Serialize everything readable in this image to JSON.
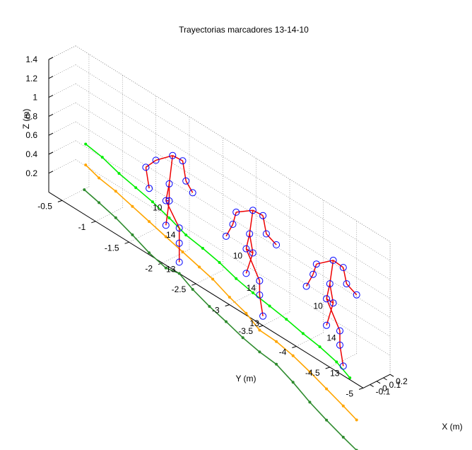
{
  "chart_data": {
    "type": "line",
    "projection": "3d",
    "title": "Trayectorias marcadores 13-14-10",
    "xlabel": "X (m)",
    "ylabel": "Y (m)",
    "zlabel": "Z (m)",
    "grid": true,
    "xlim": [
      -0.2,
      0.2
    ],
    "ylim": [
      -5,
      -0.3
    ],
    "zlim": [
      0,
      1.4
    ],
    "x_ticks": [
      "-0.1",
      "0",
      "0.1",
      "0.2"
    ],
    "y_ticks": [
      "-0.5",
      "-1",
      "-1.5",
      "-2",
      "-2.5",
      "-3",
      "-3.5",
      "-4",
      "-4.5",
      "-5"
    ],
    "z_ticks": [
      "0.2",
      "0.4",
      "0.6",
      "0.8",
      "1",
      "1.2",
      "1.4"
    ],
    "colors": {
      "marker_10": "#00ee00",
      "marker_14": "#ffa500",
      "marker_13": "#2e8b2e",
      "skeleton": "#ee0000",
      "joint": "#0000ff",
      "grid": "#888888",
      "axis": "#000000"
    },
    "series": [
      {
        "name": "10",
        "color": "#00ee00",
        "points": [
          [
            0.05,
            -0.6,
            0.55
          ],
          [
            0.05,
            -0.85,
            0.52
          ],
          [
            0.05,
            -1.1,
            0.46
          ],
          [
            0.05,
            -1.35,
            0.42
          ],
          [
            0.05,
            -1.6,
            0.38
          ],
          [
            0.05,
            -1.85,
            0.32
          ],
          [
            0.05,
            -2.1,
            0.25
          ],
          [
            0.05,
            -2.35,
            0.22
          ],
          [
            0.05,
            -2.6,
            0.18
          ],
          [
            0.05,
            -2.85,
            0.12
          ],
          [
            0.05,
            -3.1,
            0.08
          ],
          [
            0.05,
            -3.35,
            0.05
          ],
          [
            0.05,
            -3.6,
            0.02
          ],
          [
            0.05,
            -3.85,
            -0.02
          ],
          [
            0.05,
            -4.1,
            -0.05
          ],
          [
            0.05,
            -4.35,
            -0.1
          ],
          [
            0.05,
            -4.55,
            -0.18
          ]
        ]
      },
      {
        "name": "14",
        "color": "#ffa500",
        "points": [
          [
            0.05,
            -0.6,
            0.33
          ],
          [
            0.05,
            -0.8,
            0.28
          ],
          [
            0.05,
            -1.05,
            0.25
          ],
          [
            0.05,
            -1.3,
            0.2
          ],
          [
            0.05,
            -1.55,
            0.15
          ],
          [
            0.05,
            -1.8,
            0.1
          ],
          [
            0.05,
            -2.05,
            0.05
          ],
          [
            0.05,
            -2.3,
            0
          ],
          [
            0.05,
            -2.5,
            -0.04
          ],
          [
            0.05,
            -2.75,
            -0.12
          ],
          [
            0.05,
            -3.0,
            -0.18
          ],
          [
            0.05,
            -3.2,
            -0.27
          ],
          [
            0.05,
            -3.45,
            -0.28
          ],
          [
            0.05,
            -3.7,
            -0.32
          ],
          [
            0.05,
            -3.95,
            -0.38
          ],
          [
            0.05,
            -4.2,
            -0.45
          ],
          [
            0.05,
            -4.45,
            -0.52
          ],
          [
            0.05,
            -4.65,
            -0.58
          ]
        ]
      },
      {
        "name": "13",
        "color": "#2e8b2e",
        "points": [
          [
            0.05,
            -0.58,
            0.06
          ],
          [
            0.05,
            -0.8,
            0.02
          ],
          [
            0.05,
            -1.05,
            -0.03
          ],
          [
            0.05,
            -1.3,
            -0.1
          ],
          [
            0.05,
            -1.55,
            -0.18
          ],
          [
            0.05,
            -1.8,
            -0.23
          ],
          [
            0.05,
            -2.0,
            -0.2
          ],
          [
            0.05,
            -2.2,
            -0.28
          ],
          [
            0.05,
            -2.45,
            -0.35
          ],
          [
            0.05,
            -2.7,
            -0.4
          ],
          [
            0.05,
            -2.95,
            -0.46
          ],
          [
            0.05,
            -3.2,
            -0.5
          ],
          [
            0.05,
            -3.45,
            -0.52
          ],
          [
            0.05,
            -3.7,
            -0.6
          ],
          [
            0.05,
            -3.95,
            -0.7
          ],
          [
            0.05,
            -4.2,
            -0.78
          ],
          [
            0.05,
            -4.45,
            -0.85
          ],
          [
            0.05,
            -4.65,
            -0.9
          ]
        ]
      }
    ],
    "skeletons": [
      {
        "y": -1.8,
        "labels": [
          "10",
          "14",
          "13"
        ],
        "joints": [
          [
            0.05,
            -1.9,
            1.0
          ],
          [
            -0.05,
            -1.75,
            0.92
          ],
          [
            0.1,
            -2.0,
            0.97
          ],
          [
            -0.05,
            -1.6,
            0.78
          ],
          [
            0.1,
            -2.05,
            0.78
          ],
          [
            -0.1,
            -1.7,
            0.62
          ],
          [
            0.2,
            -2.05,
            0.62
          ],
          [
            0.05,
            -1.85,
            0.68
          ],
          [
            0.05,
            -1.8,
            0.48
          ],
          [
            0.05,
            -1.85,
            0.5
          ],
          [
            -0.05,
            -1.9,
            0.3
          ],
          [
            0.05,
            -2.0,
            0.28
          ],
          [
            0.05,
            -2.0,
            0.12
          ],
          [
            0.05,
            -2.0,
            -0.08
          ]
        ]
      },
      {
        "y": -3.0,
        "labels": [
          "10",
          "14",
          "13"
        ],
        "joints": [
          [
            0.05,
            -3.1,
            0.95
          ],
          [
            -0.05,
            -2.95,
            0.9
          ],
          [
            0.1,
            -3.2,
            0.92
          ],
          [
            -0.05,
            -2.9,
            0.75
          ],
          [
            0.1,
            -3.25,
            0.75
          ],
          [
            -0.1,
            -2.85,
            0.62
          ],
          [
            0.2,
            -3.3,
            0.62
          ],
          [
            0.05,
            -3.05,
            0.68
          ],
          [
            0.05,
            -3.0,
            0.5
          ],
          [
            0.05,
            -3.1,
            0.5
          ],
          [
            -0.05,
            -3.1,
            0.32
          ],
          [
            0.05,
            -3.2,
            0.25
          ],
          [
            0.05,
            -3.2,
            0.1
          ],
          [
            0.05,
            -3.25,
            -0.1
          ]
        ]
      },
      {
        "y": -4.2,
        "labels": [
          "10",
          "14",
          "13"
        ],
        "joints": [
          [
            0.05,
            -4.3,
            0.95
          ],
          [
            -0.05,
            -4.15,
            0.88
          ],
          [
            0.1,
            -4.4,
            0.9
          ],
          [
            -0.05,
            -4.1,
            0.75
          ],
          [
            0.1,
            -4.45,
            0.75
          ],
          [
            -0.1,
            -4.05,
            0.62
          ],
          [
            0.2,
            -4.5,
            0.62
          ],
          [
            0.05,
            -4.25,
            0.68
          ],
          [
            0.05,
            -4.2,
            0.5
          ],
          [
            0.05,
            -4.3,
            0.5
          ],
          [
            -0.05,
            -4.3,
            0.3
          ],
          [
            0.05,
            -4.4,
            0.25
          ],
          [
            0.05,
            -4.4,
            0.1
          ],
          [
            0.05,
            -4.45,
            -0.1
          ]
        ]
      }
    ]
  }
}
